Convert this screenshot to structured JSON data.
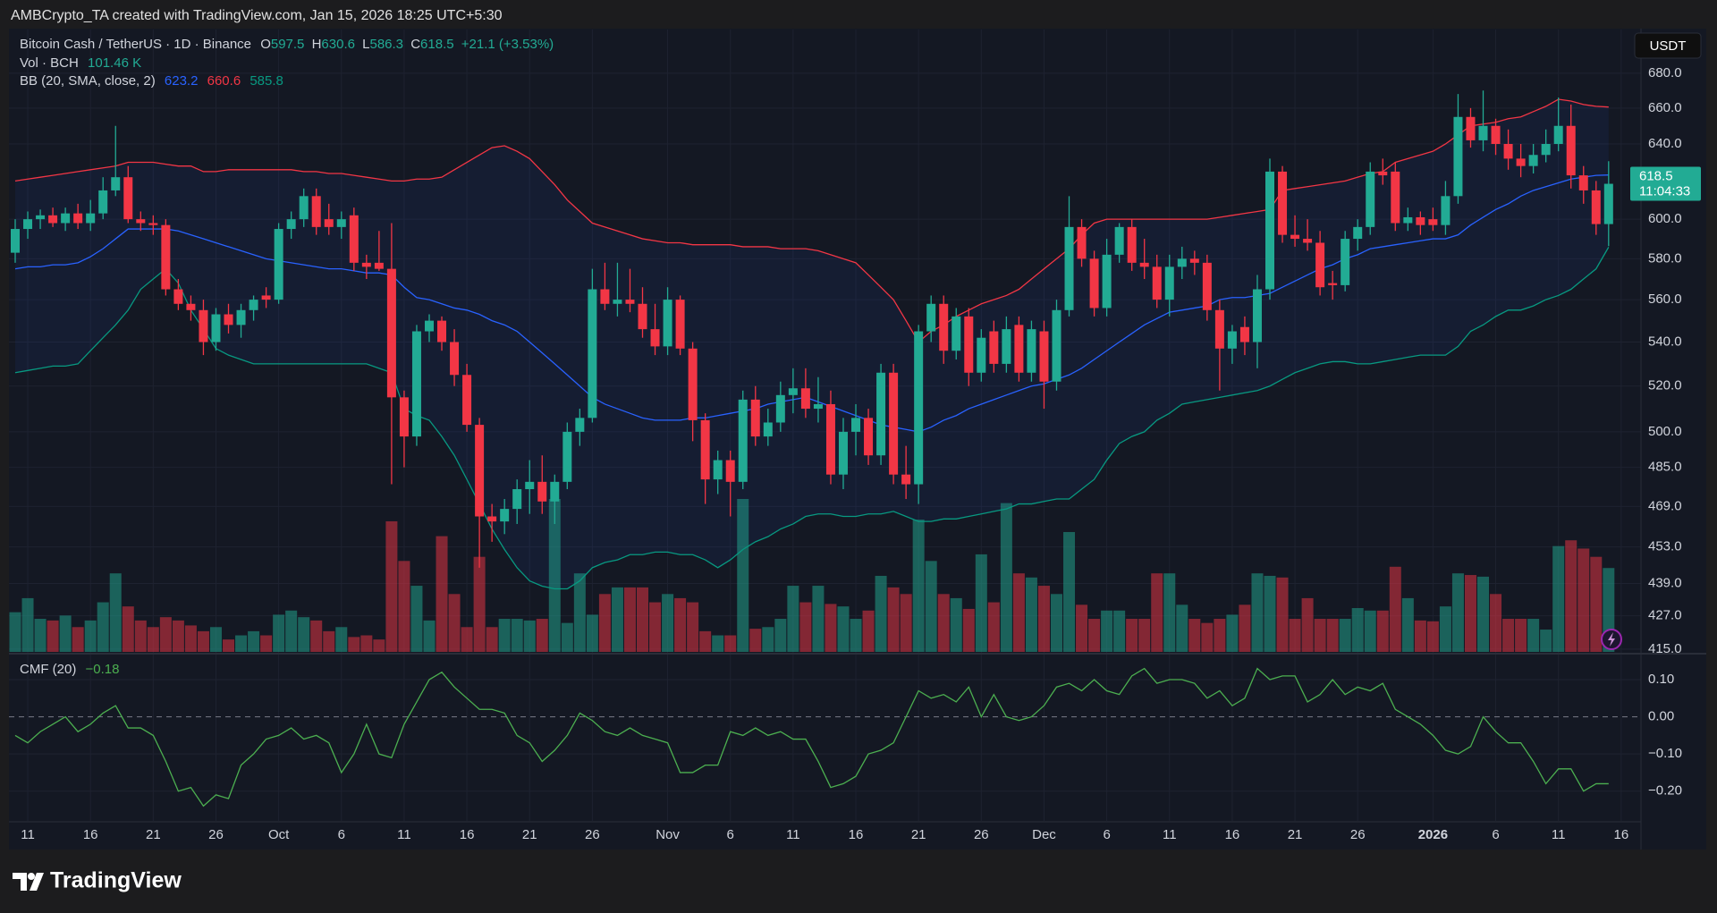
{
  "header": {
    "credit": "AMBCrypto_TA created with TradingView.com, Jan 15, 2026 18:25 UTC+5:30"
  },
  "footer": {
    "brand": "TradingView"
  },
  "chart_data": {
    "type": "candlestick",
    "symbol": "Bitcoin Cash / TetherUS · 1D · Binance",
    "ohlc_keys": [
      "O",
      "H",
      "L",
      "C"
    ],
    "change": "+21.1 (+3.53%)",
    "currency": "USDT",
    "countdown": "11:04:33",
    "log": true,
    "grid": true,
    "colors": {
      "up": "#22ab94",
      "down": "#f23645"
    },
    "ylim": [
      414,
      706
    ],
    "yticks": [
      {
        "value": 415,
        "label": "415.0"
      },
      {
        "value": 427,
        "label": "427.0"
      },
      {
        "value": 439,
        "label": "439.0"
      },
      {
        "value": 453,
        "label": "453.0"
      },
      {
        "value": 469,
        "label": "469.0"
      },
      {
        "value": 485,
        "label": "485.0"
      },
      {
        "value": 500,
        "label": "500.0"
      },
      {
        "value": 520,
        "label": "520.0"
      },
      {
        "value": 540,
        "label": "540.0"
      },
      {
        "value": 560,
        "label": "560.0"
      },
      {
        "value": 580,
        "label": "580.0"
      },
      {
        "value": 600,
        "label": "600.0"
      },
      {
        "value": 640,
        "label": "640.0"
      },
      {
        "value": 660,
        "label": "660.0"
      },
      {
        "value": 680,
        "label": "680.0"
      }
    ],
    "x": [
      null,
      "11",
      null,
      null,
      null,
      null,
      "16",
      null,
      null,
      null,
      null,
      "21",
      null,
      null,
      null,
      null,
      "26",
      null,
      null,
      null,
      null,
      "Oct",
      null,
      null,
      null,
      null,
      "6",
      null,
      null,
      null,
      null,
      "11",
      null,
      null,
      null,
      null,
      "16",
      null,
      null,
      null,
      null,
      "21",
      null,
      null,
      null,
      null,
      "26",
      null,
      null,
      null,
      null,
      null,
      "Nov",
      null,
      null,
      null,
      null,
      "6",
      null,
      null,
      null,
      null,
      "11",
      null,
      null,
      null,
      null,
      "16",
      null,
      null,
      null,
      null,
      "21",
      null,
      null,
      null,
      null,
      "26",
      null,
      null,
      null,
      null,
      "Dec",
      null,
      null,
      null,
      null,
      "6",
      null,
      null,
      null,
      null,
      "11",
      null,
      null,
      null,
      null,
      "16",
      null,
      null,
      null,
      null,
      "21",
      null,
      null,
      null,
      null,
      "26",
      null,
      null,
      null,
      null,
      null,
      "2026",
      null,
      null,
      null,
      null,
      "6",
      null,
      null,
      null,
      null,
      "11",
      null,
      null,
      null,
      null,
      "16"
    ],
    "open": [
      583,
      595,
      600,
      602,
      598,
      603,
      598,
      603,
      615,
      622,
      600,
      598,
      597,
      565,
      558,
      555,
      540,
      553,
      548,
      555,
      562,
      560,
      595,
      600,
      612,
      600,
      596,
      602,
      578,
      578,
      575,
      515,
      498,
      545,
      550,
      540,
      525,
      503,
      465,
      463,
      468,
      476,
      479,
      471,
      479,
      500,
      506,
      565,
      558,
      560,
      558,
      546,
      538,
      560,
      537,
      505,
      480,
      488,
      479,
      514,
      498,
      504,
      516,
      519,
      510,
      512,
      482,
      500,
      506,
      490,
      526,
      482,
      478,
      545,
      558,
      536,
      552,
      526,
      545,
      530,
      548,
      526,
      545,
      522,
      555,
      596,
      580,
      556,
      582,
      596,
      578,
      576,
      560,
      576,
      580,
      578,
      555,
      537,
      547,
      540,
      565,
      625,
      592,
      590,
      588,
      568,
      567,
      590,
      596,
      625,
      625,
      598,
      601,
      600,
      597,
      612,
      655,
      642,
      650,
      640,
      632,
      628,
      634,
      640,
      650,
      623,
      615,
      597.5,
      null
    ],
    "high": [
      600,
      604,
      605,
      606,
      606,
      608,
      610,
      622,
      650,
      628,
      604,
      602,
      600,
      570,
      562,
      560,
      556,
      558,
      558,
      562,
      566,
      598,
      604,
      616,
      616,
      608,
      604,
      606,
      582,
      594,
      598,
      518,
      548,
      553,
      552,
      546,
      530,
      506,
      470,
      472,
      480,
      488,
      490,
      482,
      504,
      510,
      575,
      578,
      578,
      575,
      566,
      558,
      566,
      562,
      540,
      508,
      492,
      492,
      518,
      520,
      510,
      522,
      528,
      528,
      524,
      518,
      506,
      512,
      510,
      530,
      530,
      494,
      548,
      562,
      562,
      556,
      556,
      546,
      550,
      552,
      552,
      550,
      550,
      560,
      612,
      600,
      584,
      590,
      598,
      600,
      590,
      582,
      582,
      586,
      584,
      582,
      560,
      548,
      552,
      572,
      632,
      628,
      602,
      600,
      594,
      574,
      594,
      600,
      630,
      632,
      630,
      606,
      604,
      606,
      620,
      668,
      660,
      670,
      654,
      648,
      640,
      640,
      648,
      666,
      662,
      628,
      620,
      630.6,
      null
    ],
    "low": [
      578,
      590,
      595,
      596,
      594,
      595,
      594,
      600,
      612,
      598,
      594,
      592,
      562,
      555,
      550,
      534,
      536,
      544,
      542,
      550,
      556,
      558,
      590,
      596,
      592,
      592,
      590,
      574,
      570,
      574,
      478,
      485,
      494,
      540,
      536,
      520,
      500,
      445,
      455,
      458,
      462,
      466,
      466,
      462,
      476,
      494,
      504,
      555,
      552,
      554,
      542,
      534,
      534,
      534,
      496,
      470,
      474,
      465,
      476,
      494,
      494,
      500,
      508,
      506,
      504,
      478,
      476,
      490,
      486,
      486,
      478,
      472,
      470,
      540,
      530,
      532,
      520,
      522,
      526,
      526,
      522,
      522,
      510,
      518,
      552,
      576,
      552,
      552,
      578,
      574,
      570,
      556,
      552,
      570,
      572,
      550,
      518,
      530,
      534,
      528,
      560,
      588,
      586,
      584,
      562,
      560,
      564,
      584,
      592,
      618,
      594,
      594,
      592,
      594,
      592,
      608,
      638,
      636,
      634,
      626,
      622,
      624,
      630,
      636,
      616,
      608,
      592,
      586.3,
      null
    ],
    "close": [
      595,
      600,
      602,
      598,
      603,
      598,
      603,
      615,
      622,
      600,
      598,
      597,
      565,
      558,
      555,
      540,
      553,
      548,
      555,
      560,
      560,
      595,
      600,
      612,
      596,
      596,
      600,
      578,
      576,
      575,
      515,
      498,
      545,
      550,
      540,
      525,
      503,
      465,
      463,
      468,
      476,
      479,
      471,
      479,
      500,
      506,
      565,
      558,
      560,
      558,
      546,
      538,
      560,
      537,
      505,
      480,
      488,
      479,
      514,
      498,
      504,
      516,
      519,
      510,
      512,
      482,
      500,
      506,
      490,
      526,
      482,
      478,
      545,
      558,
      536,
      552,
      526,
      542,
      530,
      546,
      526,
      546,
      522,
      555,
      596,
      580,
      556,
      582,
      596,
      578,
      576,
      560,
      576,
      580,
      578,
      555,
      537,
      545,
      540,
      565,
      625,
      592,
      590,
      588,
      566,
      567,
      590,
      596,
      625,
      623,
      598,
      601,
      597,
      597,
      612,
      655,
      642,
      650,
      640,
      632,
      628,
      634,
      640,
      650,
      623,
      615,
      597.5,
      618.5,
      null
    ],
    "volume": {
      "name": "Vol · BCH",
      "last_label": "101.46 K",
      "values": [
        48,
        65,
        40,
        38,
        44,
        30,
        38,
        60,
        95,
        55,
        38,
        30,
        42,
        38,
        32,
        25,
        30,
        15,
        20,
        25,
        20,
        45,
        50,
        42,
        38,
        25,
        30,
        18,
        20,
        15,
        158,
        110,
        80,
        38,
        140,
        70,
        30,
        115,
        30,
        40,
        40,
        38,
        40,
        185,
        35,
        95,
        45,
        70,
        78,
        78,
        78,
        60,
        70,
        65,
        60,
        25,
        20,
        20,
        185,
        28,
        30,
        40,
        80,
        60,
        80,
        58,
        55,
        40,
        50,
        92,
        78,
        70,
        160,
        110,
        70,
        65,
        52,
        118,
        60,
        180,
        95,
        90,
        80,
        70,
        145,
        57,
        40,
        50,
        50,
        40,
        40,
        95,
        95,
        57,
        40,
        35,
        40,
        45,
        57,
        95,
        92,
        90,
        40,
        65,
        40,
        40,
        40,
        53,
        50,
        50,
        103,
        65,
        38,
        37,
        55,
        95,
        93,
        91,
        70,
        40,
        40,
        40,
        27,
        128,
        135,
        125,
        115,
        101.46,
        null
      ]
    },
    "bb_label": "BB (20, SMA, close, 2)",
    "bands": {
      "basis": {
        "color": "#2962ff",
        "values": [
          575,
          576,
          576,
          577,
          577,
          578,
          581,
          585,
          590,
          595,
          595,
          595,
          595,
          594,
          592,
          590,
          588,
          586,
          584,
          582,
          580,
          579,
          578,
          577,
          576,
          575,
          575,
          574,
          573,
          573,
          572,
          566,
          561,
          560,
          558,
          556,
          555,
          553,
          550,
          548,
          545,
          540,
          535,
          530,
          525,
          520,
          515,
          512,
          510,
          508,
          506,
          505,
          505,
          505,
          506,
          506,
          507,
          508,
          509,
          510,
          512,
          513,
          514,
          515,
          513,
          511,
          509,
          507,
          505,
          503,
          502,
          501,
          500,
          502,
          505,
          507,
          510,
          512,
          514,
          516,
          518,
          520,
          521,
          523,
          525,
          528,
          532,
          536,
          540,
          544,
          548,
          551,
          554,
          555,
          556,
          557,
          560,
          561,
          561,
          562,
          563,
          566,
          569,
          572,
          575,
          577,
          580,
          582,
          585,
          586,
          587,
          588,
          589,
          590,
          590,
          592,
          597,
          601,
          605,
          608,
          612,
          615,
          617,
          619,
          621,
          622,
          623,
          623.2,
          null
        ]
      },
      "upper": {
        "color": "#f23645",
        "values": [
          620,
          621,
          622,
          623,
          624,
          625,
          626,
          627,
          628,
          630,
          630,
          630,
          629,
          628,
          628,
          625,
          625,
          626,
          626,
          626,
          626,
          626,
          626,
          625,
          625,
          624,
          624,
          623,
          622,
          621,
          620,
          620,
          621,
          621,
          622,
          626,
          630,
          634,
          638,
          639,
          636,
          632,
          625,
          618,
          610,
          604,
          598,
          596,
          594,
          592,
          590,
          589,
          588,
          588,
          587,
          587,
          587,
          587,
          586,
          586,
          586,
          585,
          585,
          585,
          584,
          582,
          580,
          578,
          572,
          566,
          560,
          550,
          540,
          545,
          548,
          552,
          555,
          558,
          560,
          562,
          565,
          570,
          575,
          580,
          585,
          592,
          598,
          600,
          600,
          600,
          600,
          600,
          600,
          600,
          600,
          600,
          601,
          602,
          603,
          604,
          605,
          615,
          616,
          617,
          618,
          619,
          620,
          622,
          624,
          625,
          630,
          632,
          634,
          636,
          640,
          645,
          650,
          651,
          652,
          654,
          655,
          658,
          661,
          665,
          664,
          662,
          661,
          660.6,
          null
        ]
      },
      "lower": {
        "color": "#089981",
        "values": [
          526,
          527,
          528,
          529,
          529,
          530,
          536,
          542,
          548,
          555,
          565,
          570,
          575,
          568,
          555,
          546,
          537,
          534,
          532,
          530,
          530,
          530,
          530,
          530,
          530,
          530,
          530,
          530,
          530,
          528,
          526,
          510,
          507,
          505,
          498,
          490,
          480,
          470,
          460,
          452,
          445,
          440,
          438,
          437,
          437,
          440,
          445,
          447,
          448,
          450,
          450,
          451,
          451,
          450,
          450,
          448,
          445,
          448,
          452,
          455,
          457,
          460,
          462,
          465,
          466,
          466,
          465,
          465,
          466,
          466,
          467,
          465,
          463,
          463,
          464,
          464,
          465,
          466,
          467,
          468,
          470,
          470,
          471,
          472,
          472,
          476,
          480,
          488,
          495,
          498,
          500,
          505,
          508,
          512,
          513,
          514,
          515,
          516,
          517,
          518,
          520,
          523,
          526,
          528,
          530,
          531,
          531,
          530,
          530,
          531,
          532,
          533,
          534,
          534,
          534,
          538,
          545,
          548,
          552,
          555,
          555,
          557,
          560,
          562,
          565,
          570,
          575,
          585.8,
          null
        ]
      }
    },
    "cmf": {
      "label": "CMF (20)",
      "last_label": "−0.18",
      "color": "#4caf50",
      "ylim": [
        -0.28,
        0.165
      ],
      "yticks": [
        {
          "value": 0.1,
          "label": "0.10"
        },
        {
          "value": 0,
          "label": "0.00"
        },
        {
          "value": -0.1,
          "label": "−0.10"
        },
        {
          "value": -0.2,
          "label": "−0.20"
        }
      ],
      "values": [
        -0.05,
        -0.07,
        -0.04,
        -0.02,
        0.0,
        -0.04,
        -0.02,
        0.01,
        0.03,
        -0.03,
        -0.03,
        -0.05,
        -0.12,
        -0.2,
        -0.19,
        -0.24,
        -0.21,
        -0.22,
        -0.13,
        -0.1,
        -0.06,
        -0.05,
        -0.03,
        -0.06,
        -0.05,
        -0.07,
        -0.15,
        -0.1,
        -0.02,
        -0.1,
        -0.11,
        -0.02,
        0.04,
        0.1,
        0.12,
        0.08,
        0.05,
        0.02,
        0.02,
        0.01,
        -0.05,
        -0.07,
        -0.12,
        -0.09,
        -0.05,
        0.01,
        -0.01,
        -0.04,
        -0.05,
        -0.03,
        -0.05,
        -0.06,
        -0.07,
        -0.15,
        -0.15,
        -0.13,
        -0.13,
        -0.04,
        -0.05,
        -0.03,
        -0.05,
        -0.04,
        -0.06,
        -0.06,
        -0.12,
        -0.19,
        -0.18,
        -0.16,
        -0.1,
        -0.09,
        -0.07,
        0.0,
        0.07,
        0.05,
        0.06,
        0.04,
        0.08,
        0.0,
        0.06,
        0.0,
        -0.01,
        0.0,
        0.03,
        0.08,
        0.09,
        0.07,
        0.1,
        0.07,
        0.06,
        0.11,
        0.13,
        0.09,
        0.1,
        0.1,
        0.09,
        0.05,
        0.07,
        0.03,
        0.05,
        0.13,
        0.1,
        0.11,
        0.11,
        0.04,
        0.06,
        0.1,
        0.06,
        0.08,
        0.07,
        0.09,
        0.02,
        0.0,
        -0.02,
        -0.05,
        -0.09,
        -0.1,
        -0.08,
        0.0,
        -0.04,
        -0.07,
        -0.07,
        -0.12,
        -0.18,
        -0.14,
        -0.14,
        -0.2,
        -0.18,
        -0.18,
        null
      ]
    }
  }
}
